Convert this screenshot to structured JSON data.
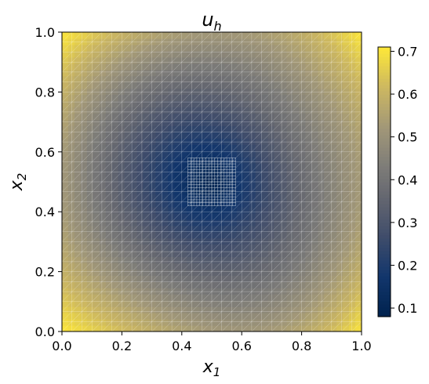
{
  "chart_data": {
    "type": "heatmap",
    "title": "u",
    "title_subscript": "h",
    "xlabel": "x",
    "xlabel_subscript": "1",
    "ylabel": "x",
    "ylabel_subscript": "2",
    "xlim": [
      0.0,
      1.0
    ],
    "ylim": [
      0.0,
      1.0
    ],
    "xticks": [
      "0.0",
      "0.2",
      "0.4",
      "0.6",
      "0.8",
      "1.0"
    ],
    "yticks": [
      "0.0",
      "0.2",
      "0.4",
      "0.6",
      "0.8",
      "1.0"
    ],
    "colorbar": {
      "colormap": "cividis",
      "range": [
        0.08,
        0.71
      ],
      "ticks": [
        "0.1",
        "0.2",
        "0.3",
        "0.4",
        "0.5",
        "0.6",
        "0.7"
      ]
    },
    "mesh": "triangular finite element mesh overlaid in white",
    "field": {
      "min_value": 0.08,
      "min_location": [
        0.5,
        0.5
      ],
      "max_value": 0.71,
      "max_location": "corners"
    }
  },
  "colors": {
    "low": "#00224e",
    "mid": "#7c7b78",
    "high": "#fee838",
    "mesh": "#ffffff"
  }
}
